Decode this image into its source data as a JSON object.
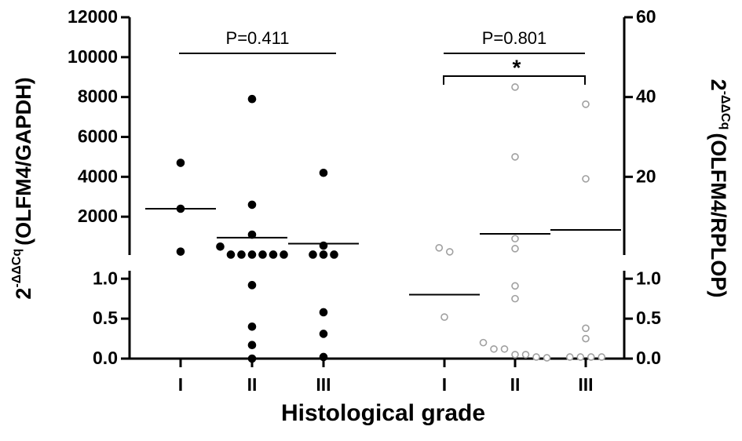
{
  "chart_data": {
    "type": "dot",
    "x_label": "Histological grade",
    "y_label": {
      "base": "2",
      "sup": "-ΔΔCq",
      "text": "(OLFM4/GAPDH)"
    },
    "y2_label": {
      "base": "2",
      "sup": "-ΔΔCq",
      "text": "(OLFM4/RPLOP)"
    },
    "y_segments": [
      {
        "ylim": [
          0,
          12000
        ],
        "yticks": [
          2000,
          4000,
          6000,
          8000,
          10000,
          12000
        ]
      },
      {
        "ylim": [
          0,
          1.1
        ],
        "yticks": [
          {
            "value": 0,
            "label": "0.0"
          },
          {
            "value": 0.5,
            "label": "0.5"
          },
          {
            "value": 1,
            "label": "1.0"
          }
        ]
      }
    ],
    "y2_segments": [
      {
        "ylim": [
          0,
          60
        ],
        "yticks": [
          20,
          40,
          60
        ]
      },
      {
        "ylim": [
          0,
          1.1
        ],
        "yticks": [
          {
            "value": 0,
            "label": "0.0"
          },
          {
            "value": 0.5,
            "label": "0.5"
          },
          {
            "value": 1,
            "label": "1.0"
          }
        ]
      }
    ],
    "groups": [
      {
        "axis": "y",
        "color": "#000000",
        "filled": true,
        "categories": [
          "I",
          "II",
          "III"
        ],
        "points": [
          [
            4700,
            2400,
            250
          ],
          [
            7900,
            2600,
            1100,
            100,
            100,
            100,
            100,
            100,
            100,
            500,
            0.92,
            0.4,
            0.17,
            0
          ],
          [
            4200,
            550,
            100,
            100,
            100,
            0.58,
            0.31,
            0.02
          ]
        ],
        "medians": [
          2400,
          950,
          650
        ]
      },
      {
        "axis": "y2",
        "color": "#a0a0a0",
        "filled": false,
        "categories": [
          "I",
          "II",
          "III"
        ],
        "points": [
          [
            2.2,
            1.2,
            0.52
          ],
          [
            42.5,
            25,
            4.5,
            2,
            0.91,
            0.75,
            0.2,
            0.12,
            0.12,
            0.05,
            0.05,
            0.02,
            0.01
          ],
          [
            38.2,
            19.5,
            0.38,
            0.25,
            0.02,
            0.02,
            0.02,
            0.02
          ]
        ],
        "medians": [
          0.8,
          5.7,
          6.7
        ]
      }
    ],
    "annotations": [
      "P=0.411",
      "P=0.801",
      "*"
    ]
  }
}
